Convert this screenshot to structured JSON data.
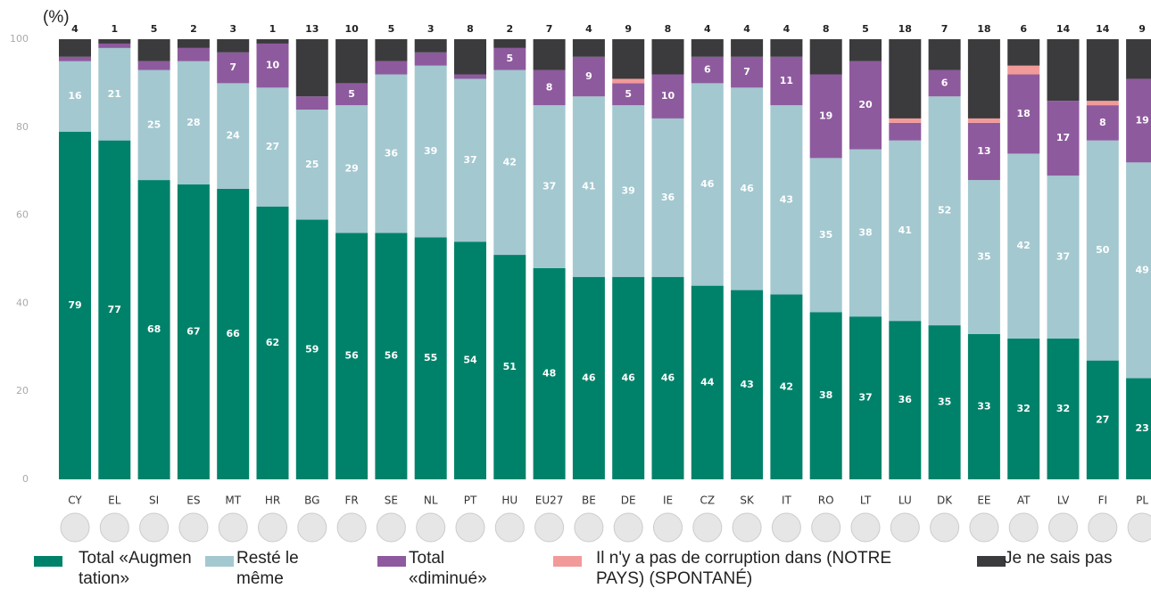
{
  "chart_data": {
    "type": "stacked_bar",
    "y_label": "(%)",
    "categories": [
      "CY",
      "EL",
      "SI",
      "ES",
      "MT",
      "HR",
      "BG",
      "FR",
      "SE",
      "NL",
      "PT",
      "HU",
      "EU27",
      "BE",
      "DE",
      "IE",
      "CZ",
      "SK",
      "IT",
      "RO",
      "LT",
      "LU",
      "DK",
      "EE",
      "AT",
      "LV",
      "FI",
      "PL"
    ],
    "ylim": [
      0,
      100
    ],
    "yticks": [
      0,
      20,
      40,
      60,
      80,
      100
    ],
    "series": [
      {
        "name": "Total «Augmentation»",
        "color": "#00826a",
        "data_labels": "inside",
        "values": [
          79,
          77,
          68,
          67,
          66,
          62,
          59,
          56,
          56,
          55,
          54,
          51,
          48,
          46,
          46,
          46,
          44,
          43,
          42,
          38,
          37,
          36,
          35,
          33,
          32,
          32,
          27,
          23
        ]
      },
      {
        "name": "Resté le même",
        "color": "#a3c8d0",
        "data_labels": "inside",
        "values": [
          16,
          21,
          25,
          28,
          24,
          27,
          25,
          29,
          36,
          39,
          37,
          42,
          37,
          41,
          39,
          36,
          46,
          46,
          43,
          35,
          38,
          41,
          52,
          35,
          42,
          37,
          50,
          49
        ]
      },
      {
        "name": "Total «diminué»",
        "color": "#8e5a9e",
        "data_labels": "inside",
        "values": [
          1,
          1,
          2,
          3,
          7,
          10,
          3,
          5,
          3,
          3,
          1,
          5,
          8,
          9,
          5,
          10,
          6,
          7,
          11,
          19,
          20,
          4,
          6,
          13,
          18,
          17,
          8,
          19
        ],
        "value_labels": [
          null,
          null,
          null,
          null,
          "7",
          "10",
          null,
          "5",
          null,
          null,
          null,
          "5",
          "8",
          "9",
          "5",
          "10",
          "6",
          "7",
          "11",
          "19",
          "20",
          null,
          "6",
          "13",
          "18",
          "17",
          "8",
          "19"
        ]
      },
      {
        "name": "Il n'y a pas de corruption dans (NOTRE PAYS) (SPONTANÉ)",
        "color": "#f29a9a",
        "values": [
          0,
          0,
          0,
          0,
          0,
          0,
          0,
          0,
          0,
          0,
          0,
          0,
          0,
          0,
          1,
          0,
          0,
          0,
          0,
          0,
          0,
          1,
          0,
          1,
          2,
          0,
          1,
          0
        ]
      },
      {
        "name": "Je ne sais pas",
        "color": "#3b3b3d",
        "data_labels": "top",
        "values": [
          4,
          1,
          5,
          2,
          3,
          1,
          13,
          10,
          5,
          3,
          8,
          2,
          7,
          4,
          9,
          8,
          4,
          4,
          4,
          8,
          5,
          18,
          7,
          18,
          6,
          14,
          14,
          9
        ]
      }
    ]
  }
}
